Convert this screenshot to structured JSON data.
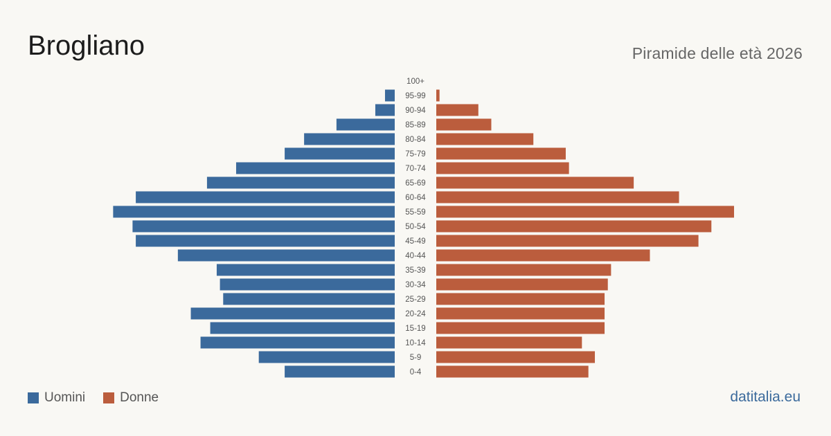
{
  "header": {
    "title": "Brogliano",
    "subtitle": "Piramide delle età 2026"
  },
  "legend": {
    "men_label": "Uomini",
    "women_label": "Donne"
  },
  "footer": {
    "source": "datitalia.eu"
  },
  "colors": {
    "men": "#3b6a9c",
    "women": "#bb5d3d",
    "background": "#f9f8f4"
  },
  "chart_data": {
    "type": "bar",
    "orientation": "horizontal-pyramid",
    "title": "Brogliano",
    "subtitle": "Piramide delle età 2026",
    "categories": [
      "100+",
      "95-99",
      "90-94",
      "85-89",
      "80-84",
      "75-79",
      "70-74",
      "65-69",
      "60-64",
      "55-59",
      "50-54",
      "45-49",
      "40-44",
      "35-39",
      "30-34",
      "25-29",
      "20-24",
      "15-19",
      "10-14",
      "5-9",
      "0-4"
    ],
    "series": [
      {
        "name": "Uomini",
        "side": "left",
        "values": [
          0,
          3,
          6,
          18,
          28,
          34,
          49,
          58,
          80,
          87,
          81,
          80,
          67,
          55,
          54,
          53,
          63,
          57,
          60,
          42,
          34
        ]
      },
      {
        "name": "Donne",
        "side": "right",
        "values": [
          0,
          1,
          13,
          17,
          30,
          40,
          41,
          61,
          75,
          92,
          85,
          81,
          66,
          54,
          53,
          52,
          52,
          52,
          45,
          49,
          47
        ]
      }
    ],
    "grid": false,
    "legend_position": "bottom-left",
    "axis_labels_visible": false
  }
}
